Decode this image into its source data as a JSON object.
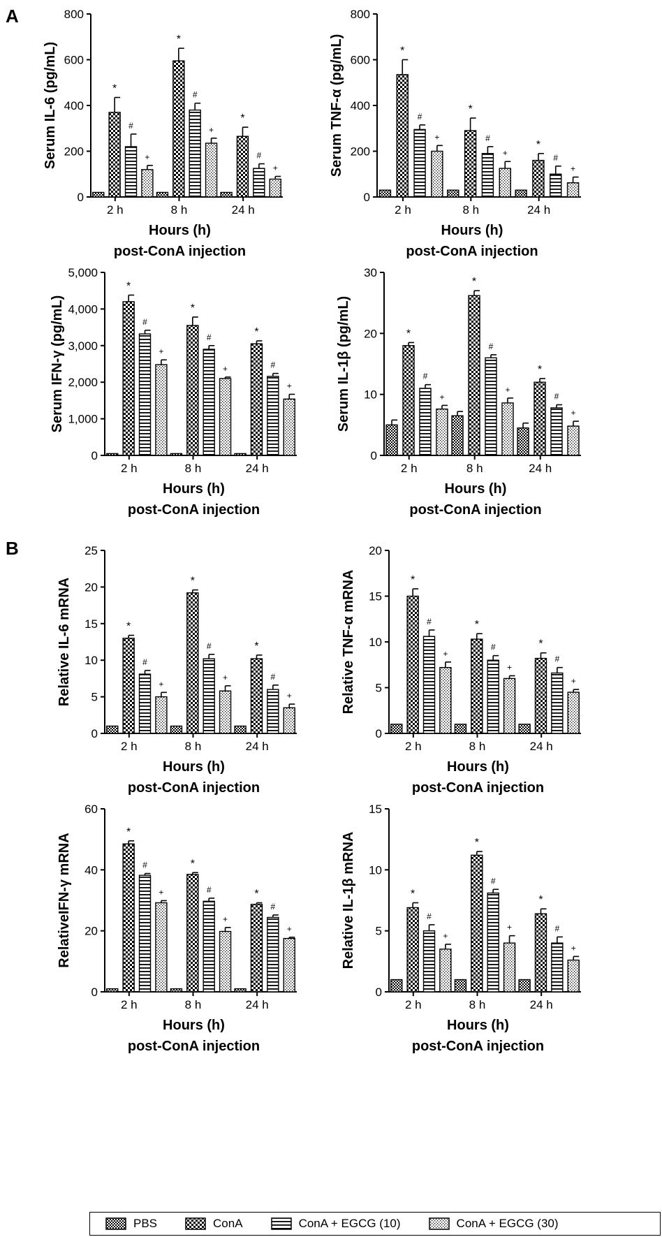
{
  "figure": {
    "panel_labels": [
      "A",
      "B"
    ],
    "legend": {
      "entries": [
        {
          "label": "PBS",
          "pattern": "fine-check"
        },
        {
          "label": "ConA",
          "pattern": "coarse-check"
        },
        {
          "label": "ConA + EGCG (10)",
          "pattern": "horizontal-lines"
        },
        {
          "label": "ConA + EGCG (30)",
          "pattern": "dots"
        }
      ]
    }
  },
  "chart_data": [
    {
      "type": "bar",
      "panel": "A",
      "categories": [
        "2 h",
        "8 h",
        "24 h"
      ],
      "series": [
        {
          "name": "PBS",
          "values": [
            20,
            20,
            20
          ],
          "errors": [
            0,
            0,
            0
          ],
          "marks": [
            "",
            "",
            ""
          ]
        },
        {
          "name": "ConA",
          "values": [
            370,
            595,
            265
          ],
          "errors": [
            65,
            55,
            40
          ],
          "marks": [
            "*",
            "*",
            "*"
          ]
        },
        {
          "name": "ConA + EGCG (10)",
          "values": [
            220,
            380,
            125
          ],
          "errors": [
            55,
            30,
            20
          ],
          "marks": [
            "#",
            "#",
            "#"
          ]
        },
        {
          "name": "ConA + EGCG (30)",
          "values": [
            120,
            235,
            78
          ],
          "errors": [
            18,
            22,
            12
          ],
          "marks": [
            "+",
            "+",
            "+"
          ]
        }
      ],
      "ylabel": "Serum IL-6 (pg/mL)",
      "xlabel": "Hours (h)",
      "xlabel2": "post-ConA injection",
      "ylim": [
        0,
        800
      ],
      "yticks": [
        "0",
        "200",
        "400",
        "600",
        "800"
      ]
    },
    {
      "type": "bar",
      "panel": "A",
      "categories": [
        "2 h",
        "8 h",
        "24 h"
      ],
      "series": [
        {
          "name": "PBS",
          "values": [
            30,
            30,
            30
          ],
          "errors": [
            0,
            0,
            0
          ],
          "marks": [
            "",
            "",
            ""
          ]
        },
        {
          "name": "ConA",
          "values": [
            535,
            290,
            160
          ],
          "errors": [
            65,
            55,
            30
          ],
          "marks": [
            "*",
            "*",
            "*"
          ]
        },
        {
          "name": "ConA + EGCG (10)",
          "values": [
            295,
            190,
            100
          ],
          "errors": [
            20,
            30,
            35
          ],
          "marks": [
            "#",
            "#",
            "#"
          ]
        },
        {
          "name": "ConA + EGCG (30)",
          "values": [
            200,
            125,
            62
          ],
          "errors": [
            25,
            30,
            25
          ],
          "marks": [
            "+",
            "+",
            "+"
          ]
        }
      ],
      "ylabel": "Serum TNF-α (pg/mL)",
      "xlabel": "Hours (h)",
      "xlabel2": "post-ConA injection",
      "ylim": [
        0,
        800
      ],
      "yticks": [
        "0",
        "200",
        "400",
        "600",
        "800"
      ]
    },
    {
      "type": "bar",
      "panel": "A",
      "categories": [
        "2 h",
        "8 h",
        "24 h"
      ],
      "series": [
        {
          "name": "PBS",
          "values": [
            50,
            50,
            50
          ],
          "errors": [
            0,
            0,
            0
          ],
          "marks": [
            "",
            "",
            ""
          ]
        },
        {
          "name": "ConA",
          "values": [
            4200,
            3550,
            3050
          ],
          "errors": [
            180,
            230,
            80
          ],
          "marks": [
            "*",
            "*",
            "*"
          ]
        },
        {
          "name": "ConA + EGCG (10)",
          "values": [
            3320,
            2900,
            2160
          ],
          "errors": [
            100,
            100,
            80
          ],
          "marks": [
            "#",
            "#",
            "#"
          ]
        },
        {
          "name": "ConA + EGCG (30)",
          "values": [
            2480,
            2100,
            1540
          ],
          "errors": [
            130,
            40,
            130
          ],
          "marks": [
            "+",
            "+",
            "+"
          ]
        }
      ],
      "ylabel": "Serum IFN-γ (pg/mL)",
      "xlabel": "Hours (h)",
      "xlabel2": "post-ConA injection",
      "ylim": [
        0,
        5000
      ],
      "yticks": [
        "0",
        "1,000",
        "2,000",
        "3,000",
        "4,000",
        "5,000"
      ]
    },
    {
      "type": "bar",
      "panel": "A",
      "categories": [
        "2 h",
        "8 h",
        "24 h"
      ],
      "series": [
        {
          "name": "PBS",
          "values": [
            5,
            6.5,
            4.5
          ],
          "errors": [
            0.8,
            0.7,
            0.8
          ],
          "marks": [
            "",
            "",
            ""
          ]
        },
        {
          "name": "ConA",
          "values": [
            18,
            26.2,
            12
          ],
          "errors": [
            0.5,
            0.8,
            0.6
          ],
          "marks": [
            "*",
            "*",
            "*"
          ]
        },
        {
          "name": "ConA + EGCG (10)",
          "values": [
            11,
            16,
            7.8
          ],
          "errors": [
            0.6,
            0.5,
            0.5
          ],
          "marks": [
            "#",
            "#",
            "#"
          ]
        },
        {
          "name": "ConA + EGCG (30)",
          "values": [
            7.6,
            8.6,
            4.8
          ],
          "errors": [
            0.6,
            0.8,
            0.8
          ],
          "marks": [
            "+",
            "+",
            "+"
          ]
        }
      ],
      "ylabel": "Serum IL-1β (pg/mL)",
      "xlabel": "Hours (h)",
      "xlabel2": "post-ConA injection",
      "ylim": [
        0,
        30
      ],
      "yticks": [
        "0",
        "10",
        "20",
        "30"
      ]
    },
    {
      "type": "bar",
      "panel": "B",
      "categories": [
        "2 h",
        "8 h",
        "24 h"
      ],
      "series": [
        {
          "name": "PBS",
          "values": [
            1,
            1,
            1
          ],
          "errors": [
            0,
            0,
            0
          ],
          "marks": [
            "",
            "",
            ""
          ]
        },
        {
          "name": "ConA",
          "values": [
            13,
            19.2,
            10.2
          ],
          "errors": [
            0.4,
            0.4,
            0.5
          ],
          "marks": [
            "*",
            "*",
            "*"
          ]
        },
        {
          "name": "ConA + EGCG (10)",
          "values": [
            8.1,
            10.2,
            6
          ],
          "errors": [
            0.5,
            0.6,
            0.6
          ],
          "marks": [
            "#",
            "#",
            "#"
          ]
        },
        {
          "name": "ConA + EGCG (30)",
          "values": [
            5,
            5.8,
            3.5
          ],
          "errors": [
            0.6,
            0.7,
            0.5
          ],
          "marks": [
            "+",
            "+",
            "+"
          ]
        }
      ],
      "ylabel": "Relative IL-6 mRNA",
      "xlabel": "Hours (h)",
      "xlabel2": "post-ConA injection",
      "ylim": [
        0,
        25
      ],
      "yticks": [
        "0",
        "5",
        "10",
        "15",
        "20",
        "25"
      ]
    },
    {
      "type": "bar",
      "panel": "B",
      "categories": [
        "2 h",
        "8 h",
        "24 h"
      ],
      "series": [
        {
          "name": "PBS",
          "values": [
            1,
            1,
            1
          ],
          "errors": [
            0,
            0,
            0
          ],
          "marks": [
            "",
            "",
            ""
          ]
        },
        {
          "name": "ConA",
          "values": [
            15,
            10.3,
            8.2
          ],
          "errors": [
            0.8,
            0.6,
            0.6
          ],
          "marks": [
            "*",
            "*",
            "*"
          ]
        },
        {
          "name": "ConA + EGCG (10)",
          "values": [
            10.6,
            8,
            6.6
          ],
          "errors": [
            0.7,
            0.5,
            0.6
          ],
          "marks": [
            "#",
            "#",
            "#"
          ]
        },
        {
          "name": "ConA + EGCG (30)",
          "values": [
            7.2,
            6,
            4.5
          ],
          "errors": [
            0.6,
            0.3,
            0.3
          ],
          "marks": [
            "+",
            "+",
            "+"
          ]
        }
      ],
      "ylabel": "Relative TNF-α mRNA",
      "xlabel": "Hours (h)",
      "xlabel2": "post-ConA injection",
      "ylim": [
        0,
        20
      ],
      "yticks": [
        "0",
        "5",
        "10",
        "15",
        "20"
      ]
    },
    {
      "type": "bar",
      "panel": "B",
      "categories": [
        "2 h",
        "8 h",
        "24 h"
      ],
      "series": [
        {
          "name": "PBS",
          "values": [
            1,
            1,
            1
          ],
          "errors": [
            0,
            0,
            0
          ],
          "marks": [
            "",
            "",
            ""
          ]
        },
        {
          "name": "ConA",
          "values": [
            48.5,
            38.5,
            28.7
          ],
          "errors": [
            1,
            0.6,
            0.5
          ],
          "marks": [
            "*",
            "*",
            "*"
          ]
        },
        {
          "name": "ConA + EGCG (10)",
          "values": [
            38.2,
            29.7,
            24.4
          ],
          "errors": [
            0.6,
            1,
            0.8
          ],
          "marks": [
            "#",
            "#",
            "#"
          ]
        },
        {
          "name": "ConA + EGCG (30)",
          "values": [
            29.2,
            19.8,
            17.5
          ],
          "errors": [
            0.7,
            1.3,
            0.4
          ],
          "marks": [
            "+",
            "+",
            "+"
          ]
        }
      ],
      "ylabel": "RelativeIFN-γ mRNA",
      "xlabel": "Hours (h)",
      "xlabel2": "post-ConA injection",
      "ylim": [
        0,
        60
      ],
      "yticks": [
        "0",
        "20",
        "40",
        "60"
      ]
    },
    {
      "type": "bar",
      "panel": "B",
      "categories": [
        "2 h",
        "8 h",
        "24 h"
      ],
      "series": [
        {
          "name": "PBS",
          "values": [
            1,
            1,
            1
          ],
          "errors": [
            0,
            0,
            0
          ],
          "marks": [
            "",
            "",
            ""
          ]
        },
        {
          "name": "ConA",
          "values": [
            6.9,
            11.2,
            6.4
          ],
          "errors": [
            0.4,
            0.3,
            0.4
          ],
          "marks": [
            "*",
            "*",
            "*"
          ]
        },
        {
          "name": "ConA + EGCG (10)",
          "values": [
            5,
            8.1,
            4
          ],
          "errors": [
            0.5,
            0.3,
            0.5
          ],
          "marks": [
            "#",
            "#",
            "#"
          ]
        },
        {
          "name": "ConA + EGCG (30)",
          "values": [
            3.5,
            4,
            2.6
          ],
          "errors": [
            0.4,
            0.6,
            0.3
          ],
          "marks": [
            "+",
            "+",
            "+"
          ]
        }
      ],
      "ylabel": "Relative IL-1β mRNA",
      "xlabel": "Hours (h)",
      "xlabel2": "post-ConA injection",
      "ylim": [
        0,
        15
      ],
      "yticks": [
        "0",
        "5",
        "10",
        "15"
      ]
    }
  ]
}
